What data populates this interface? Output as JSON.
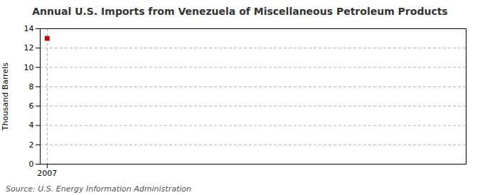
{
  "chart_data": {
    "type": "scatter",
    "title": "Annual U.S. Imports from Venezuela of Miscellaneous Petroleum Products",
    "ylabel": "Thousand Barrels",
    "source": "Source: U.S. Energy Information Administration",
    "x": [
      2007
    ],
    "values": [
      13
    ],
    "color": "#cc0000",
    "marker": "square",
    "xlim": [
      2006.7,
      2025
    ],
    "xticks": [
      2007
    ],
    "ylim": [
      0,
      14
    ],
    "yticks": [
      0,
      2,
      4,
      6,
      8,
      10,
      12,
      14
    ],
    "grid": true
  }
}
